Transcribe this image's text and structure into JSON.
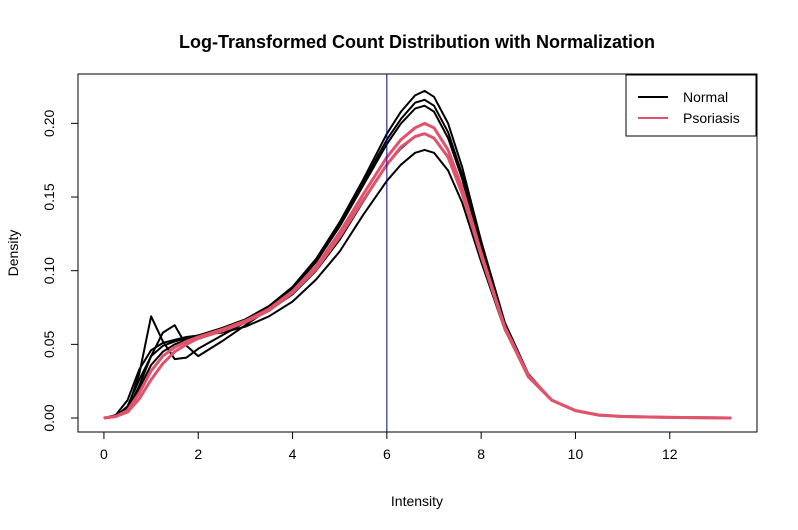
{
  "chart_data": {
    "type": "line",
    "title": "Log-Transformed Count Distribution with Normalization",
    "xlabel": "Intensity",
    "ylabel": "Density",
    "xlim": [
      -0.55,
      13.85
    ],
    "ylim": [
      -0.0095,
      0.2335
    ],
    "x_ticks": [
      0,
      2,
      4,
      6,
      8,
      10,
      12
    ],
    "y_ticks": [
      0.0,
      0.05,
      0.1,
      0.15,
      0.2
    ],
    "y_tick_labels": [
      "0.00",
      "0.05",
      "0.10",
      "0.15",
      "0.20"
    ],
    "vline": {
      "x": 6,
      "color": "#00008B"
    },
    "legend": {
      "position": "top-right",
      "entries": [
        {
          "label": "Normal",
          "color": "#000000"
        },
        {
          "label": "Psoriasis",
          "color": "#DF536B"
        }
      ]
    },
    "x": [
      0,
      0.25,
      0.5,
      0.75,
      1.0,
      1.25,
      1.5,
      1.75,
      2.0,
      2.5,
      3.0,
      3.5,
      4.0,
      4.5,
      5.0,
      5.5,
      6.0,
      6.3,
      6.6,
      6.8,
      7.0,
      7.3,
      7.6,
      8.0,
      8.5,
      9.0,
      9.5,
      10.0,
      10.5,
      11.0,
      12.0,
      13.3
    ],
    "series": [
      {
        "name": "Normal",
        "color": "#000000",
        "values": [
          0,
          0.001,
          0.006,
          0.03,
          0.069,
          0.052,
          0.04,
          0.041,
          0.047,
          0.056,
          0.065,
          0.075,
          0.088,
          0.106,
          0.13,
          0.158,
          0.186,
          0.2,
          0.21,
          0.212,
          0.208,
          0.19,
          0.162,
          0.115,
          0.063,
          0.029,
          0.012,
          0.005,
          0.002,
          0.001,
          0.0004,
          0
        ]
      },
      {
        "name": "Normal",
        "color": "#000000",
        "values": [
          0,
          0.001,
          0.005,
          0.022,
          0.042,
          0.058,
          0.063,
          0.049,
          0.042,
          0.052,
          0.063,
          0.074,
          0.088,
          0.106,
          0.131,
          0.16,
          0.189,
          0.203,
          0.214,
          0.216,
          0.212,
          0.194,
          0.165,
          0.117,
          0.064,
          0.029,
          0.012,
          0.005,
          0.002,
          0.001,
          0.0004,
          0
        ]
      },
      {
        "name": "Normal",
        "color": "#000000",
        "values": [
          0,
          0.002,
          0.012,
          0.033,
          0.046,
          0.051,
          0.053,
          0.055,
          0.056,
          0.058,
          0.062,
          0.069,
          0.079,
          0.094,
          0.113,
          0.138,
          0.161,
          0.172,
          0.18,
          0.182,
          0.18,
          0.168,
          0.146,
          0.106,
          0.06,
          0.028,
          0.012,
          0.005,
          0.002,
          0.001,
          0.0004,
          0
        ]
      },
      {
        "name": "Normal",
        "color": "#000000",
        "values": [
          0,
          0.001,
          0.008,
          0.026,
          0.042,
          0.049,
          0.052,
          0.054,
          0.056,
          0.06,
          0.065,
          0.073,
          0.084,
          0.1,
          0.121,
          0.147,
          0.172,
          0.183,
          0.191,
          0.193,
          0.19,
          0.177,
          0.152,
          0.11,
          0.061,
          0.028,
          0.012,
          0.005,
          0.002,
          0.001,
          0.0004,
          0
        ]
      },
      {
        "name": "Normal",
        "color": "#000000",
        "values": [
          0,
          0.001,
          0.006,
          0.02,
          0.036,
          0.045,
          0.05,
          0.053,
          0.056,
          0.061,
          0.067,
          0.076,
          0.089,
          0.108,
          0.133,
          0.162,
          0.193,
          0.208,
          0.219,
          0.222,
          0.218,
          0.2,
          0.17,
          0.12,
          0.065,
          0.03,
          0.012,
          0.005,
          0.002,
          0.001,
          0.0004,
          0
        ]
      },
      {
        "name": "Psoriasis",
        "color": "#DF536B",
        "values": [
          0,
          0.001,
          0.005,
          0.017,
          0.032,
          0.042,
          0.048,
          0.052,
          0.055,
          0.06,
          0.066,
          0.074,
          0.086,
          0.103,
          0.126,
          0.152,
          0.177,
          0.189,
          0.197,
          0.2,
          0.197,
          0.182,
          0.156,
          0.112,
          0.062,
          0.029,
          0.012,
          0.005,
          0.002,
          0.001,
          0.0004,
          0
        ]
      },
      {
        "name": "Psoriasis",
        "color": "#DF536B",
        "values": [
          0,
          0.001,
          0.004,
          0.013,
          0.026,
          0.037,
          0.045,
          0.05,
          0.054,
          0.059,
          0.065,
          0.073,
          0.085,
          0.101,
          0.123,
          0.148,
          0.172,
          0.184,
          0.191,
          0.193,
          0.19,
          0.177,
          0.152,
          0.11,
          0.061,
          0.028,
          0.012,
          0.005,
          0.002,
          0.001,
          0.0004,
          0
        ]
      }
    ]
  }
}
